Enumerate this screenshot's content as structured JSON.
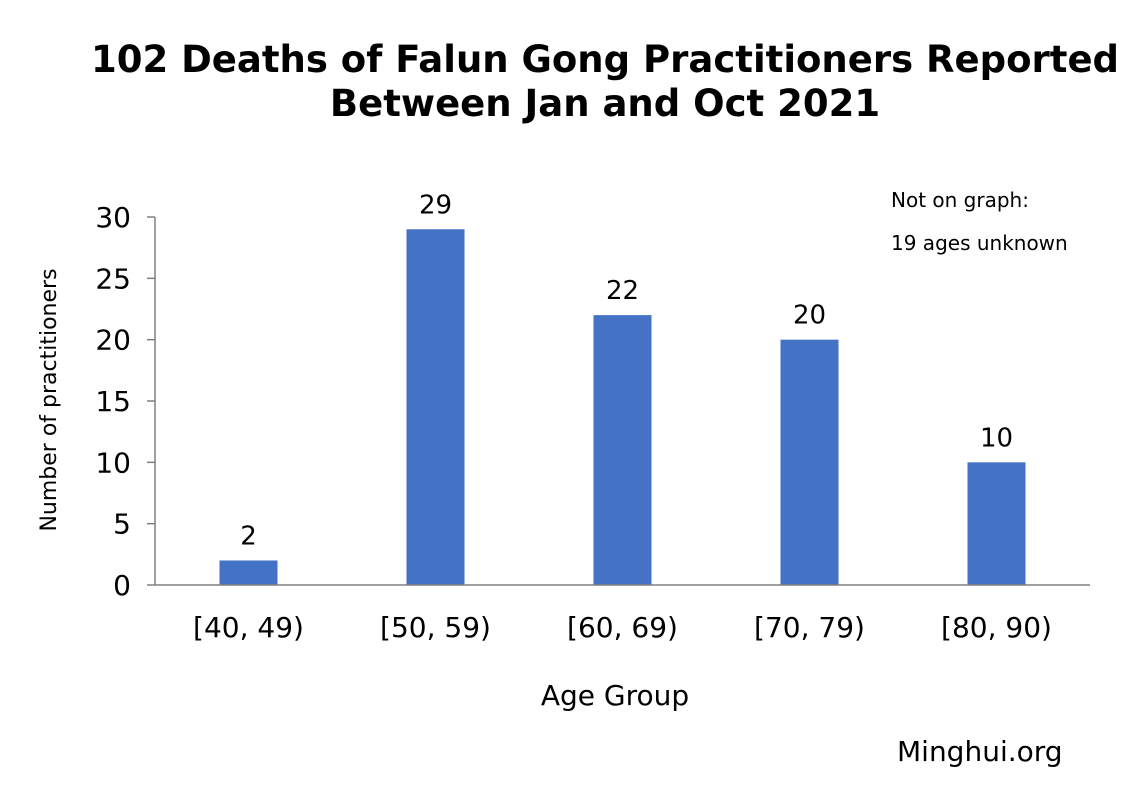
{
  "chart_data": {
    "type": "bar",
    "title_lines": [
      "102 Deaths of Falun Gong Practitioners Reported",
      "Between Jan and Oct 2021"
    ],
    "xlabel": "Age Group",
    "ylabel": "Number of practitioners",
    "categories": [
      "[40, 49)",
      "[50, 59)",
      "[60, 69)",
      "[70, 79)",
      "[80, 90)"
    ],
    "values": [
      2,
      29,
      22,
      20,
      10
    ],
    "data_labels": [
      "2",
      "29",
      "22",
      "20",
      "10"
    ],
    "ylim": [
      0,
      30
    ],
    "yticks": [
      0,
      5,
      10,
      15,
      20,
      25,
      30
    ],
    "grid": false,
    "bar_color": "#4472C4",
    "annotations": [
      "Not on graph:",
      "19 ages unknown"
    ]
  },
  "watermark": "Minghui.org"
}
